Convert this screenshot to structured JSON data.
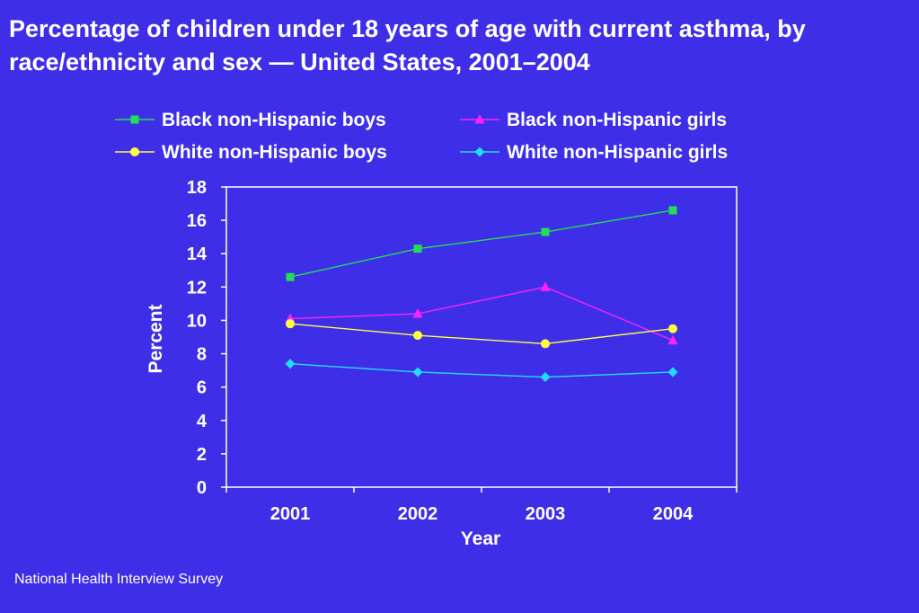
{
  "title": "Percentage of children under 18 years of age with current asthma, by race/ethnicity and sex — United States, 2001–2004",
  "source": "National Health Interview Survey",
  "colors": {
    "background": "#3f2ee8",
    "frame": "#ffffff"
  },
  "chart_data": {
    "type": "line",
    "xlabel": "Year",
    "ylabel": "Percent",
    "categories": [
      "2001",
      "2002",
      "2003",
      "2004"
    ],
    "ylim": [
      0,
      18
    ],
    "yticks": [
      "0",
      "2",
      "4",
      "6",
      "8",
      "10",
      "12",
      "14",
      "16",
      "18"
    ],
    "grid": false,
    "legend_position": "top",
    "series": [
      {
        "name": "Black non-Hispanic boys",
        "values": [
          12.6,
          14.3,
          15.3,
          16.6
        ],
        "color": "#22dd55",
        "marker": "square"
      },
      {
        "name": "Black non-Hispanic girls",
        "values": [
          10.1,
          10.4,
          12.0,
          8.8
        ],
        "color": "#ff22ff",
        "marker": "triangle"
      },
      {
        "name": "White non-Hispanic boys",
        "values": [
          9.8,
          9.1,
          8.6,
          9.5
        ],
        "color": "#ffff44",
        "marker": "circle"
      },
      {
        "name": "White non-Hispanic girls",
        "values": [
          7.4,
          6.9,
          6.6,
          6.9
        ],
        "color": "#22ddff",
        "marker": "diamond"
      }
    ]
  }
}
